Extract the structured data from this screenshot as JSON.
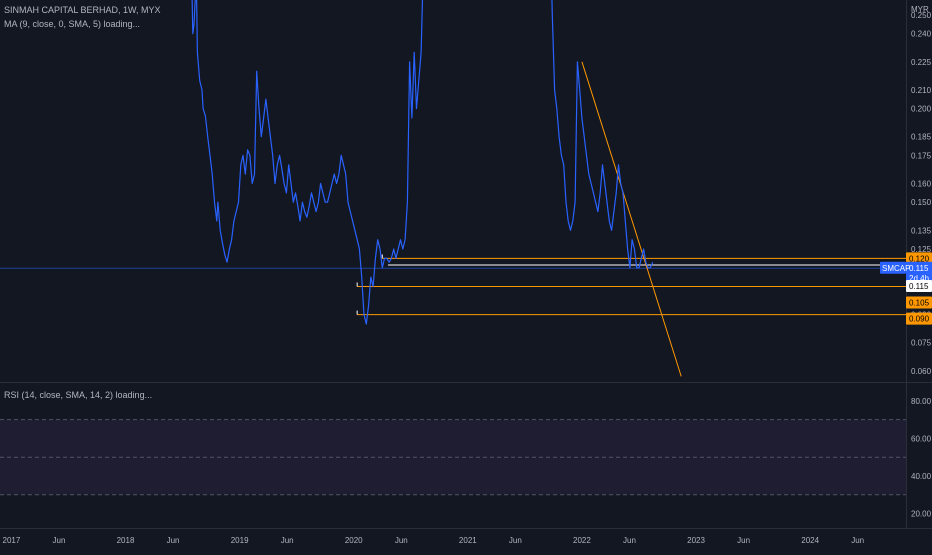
{
  "header": {
    "symbol_line": "SINMAH CAPITAL BERHAD, 1W, MYX",
    "ma_line": "MA (9, close, 0, SMA, 5) loading..."
  },
  "rsi_panel": {
    "legend": "RSI (14, close, SMA, 14, 2) loading...",
    "ticks": [
      "80.00",
      "60.00",
      "40.00",
      "20.00"
    ],
    "band_upper": 70,
    "band_lower": 30,
    "mid": 50
  },
  "price_axis": {
    "currency": "MYR",
    "ticks": [
      "0.250",
      "0.240",
      "0.225",
      "0.210",
      "0.200",
      "0.185",
      "0.175",
      "0.160",
      "0.150",
      "0.135",
      "0.125",
      "0.115",
      "0.105",
      "0.090",
      "0.075",
      "0.060"
    ]
  },
  "tags": {
    "symbol": "SMCAP",
    "last_price": "0.115",
    "countdown": "2d 4h",
    "levels": [
      {
        "label": "0.120",
        "value": 0.12,
        "color": "#ff9800"
      },
      {
        "label": "0.115",
        "value": 0.115,
        "color": "#ffffff"
      },
      {
        "label": "0.105",
        "value": 0.105,
        "color": "#ff9800"
      },
      {
        "label": "0.090",
        "value": 0.09,
        "color": "#ff9800"
      }
    ]
  },
  "time_axis": {
    "labels": [
      "2017",
      "Jun",
      "2018",
      "Jun",
      "2019",
      "Jun",
      "2020",
      "Jun",
      "2021",
      "Jun",
      "2022",
      "Jun",
      "2023",
      "Jun",
      "2024",
      "Jun"
    ]
  },
  "colors": {
    "background": "#131722",
    "price_line": "#2962ff",
    "trend_line": "#ff9800",
    "rsi_band": "#7e57c2"
  },
  "chart_data": {
    "type": "line",
    "title": "SINMAH CAPITAL BERHAD, 1W, MYX",
    "ylabel": "MYR",
    "ylim": [
      0.054,
      0.258
    ],
    "series": [
      {
        "points": [
          [
            2018.57,
            0.3
          ],
          [
            2018.59,
            0.24
          ],
          [
            2018.6,
            0.245
          ],
          [
            2018.62,
            0.27
          ],
          [
            2018.63,
            0.23
          ],
          [
            2018.65,
            0.215
          ],
          [
            2018.67,
            0.21
          ],
          [
            2018.68,
            0.2
          ],
          [
            2018.7,
            0.196
          ],
          [
            2018.72,
            0.185
          ],
          [
            2018.74,
            0.175
          ],
          [
            2018.76,
            0.165
          ],
          [
            2018.78,
            0.15
          ],
          [
            2018.8,
            0.14
          ],
          [
            2018.81,
            0.15
          ],
          [
            2018.83,
            0.135
          ],
          [
            2018.85,
            0.128
          ],
          [
            2018.87,
            0.122
          ],
          [
            2018.89,
            0.118
          ],
          [
            2018.91,
            0.125
          ],
          [
            2018.93,
            0.13
          ],
          [
            2018.95,
            0.14
          ],
          [
            2018.97,
            0.145
          ],
          [
            2018.99,
            0.15
          ],
          [
            2019.01,
            0.17
          ],
          [
            2019.03,
            0.175
          ],
          [
            2019.05,
            0.165
          ],
          [
            2019.07,
            0.178
          ],
          [
            2019.09,
            0.175
          ],
          [
            2019.11,
            0.16
          ],
          [
            2019.13,
            0.165
          ],
          [
            2019.15,
            0.22
          ],
          [
            2019.17,
            0.2
          ],
          [
            2019.19,
            0.185
          ],
          [
            2019.21,
            0.195
          ],
          [
            2019.23,
            0.205
          ],
          [
            2019.25,
            0.195
          ],
          [
            2019.27,
            0.185
          ],
          [
            2019.29,
            0.175
          ],
          [
            2019.31,
            0.16
          ],
          [
            2019.33,
            0.17
          ],
          [
            2019.35,
            0.175
          ],
          [
            2019.37,
            0.168
          ],
          [
            2019.39,
            0.16
          ],
          [
            2019.41,
            0.155
          ],
          [
            2019.43,
            0.17
          ],
          [
            2019.45,
            0.16
          ],
          [
            2019.47,
            0.15
          ],
          [
            2019.49,
            0.155
          ],
          [
            2019.51,
            0.148
          ],
          [
            2019.53,
            0.14
          ],
          [
            2019.55,
            0.15
          ],
          [
            2019.57,
            0.145
          ],
          [
            2019.59,
            0.142
          ],
          [
            2019.61,
            0.148
          ],
          [
            2019.63,
            0.155
          ],
          [
            2019.65,
            0.15
          ],
          [
            2019.67,
            0.145
          ],
          [
            2019.69,
            0.15
          ],
          [
            2019.71,
            0.16
          ],
          [
            2019.73,
            0.155
          ],
          [
            2019.75,
            0.15
          ],
          [
            2019.77,
            0.15
          ],
          [
            2019.79,
            0.155
          ],
          [
            2019.81,
            0.16
          ],
          [
            2019.83,
            0.165
          ],
          [
            2019.85,
            0.16
          ],
          [
            2019.87,
            0.165
          ],
          [
            2019.89,
            0.175
          ],
          [
            2019.91,
            0.17
          ],
          [
            2019.93,
            0.165
          ],
          [
            2019.95,
            0.15
          ],
          [
            2019.97,
            0.145
          ],
          [
            2019.99,
            0.14
          ],
          [
            2020.01,
            0.135
          ],
          [
            2020.03,
            0.13
          ],
          [
            2020.05,
            0.125
          ],
          [
            2020.07,
            0.11
          ],
          [
            2020.09,
            0.09
          ],
          [
            2020.11,
            0.085
          ],
          [
            2020.13,
            0.095
          ],
          [
            2020.15,
            0.11
          ],
          [
            2020.17,
            0.105
          ],
          [
            2020.19,
            0.12
          ],
          [
            2020.21,
            0.13
          ],
          [
            2020.23,
            0.125
          ],
          [
            2020.25,
            0.115
          ],
          [
            2020.27,
            0.12
          ],
          [
            2020.29,
            0.12
          ],
          [
            2020.31,
            0.118
          ],
          [
            2020.33,
            0.12
          ],
          [
            2020.35,
            0.125
          ],
          [
            2020.37,
            0.12
          ],
          [
            2020.39,
            0.125
          ],
          [
            2020.41,
            0.13
          ],
          [
            2020.43,
            0.125
          ],
          [
            2020.45,
            0.13
          ],
          [
            2020.47,
            0.15
          ],
          [
            2020.49,
            0.225
          ],
          [
            2020.51,
            0.195
          ],
          [
            2020.53,
            0.23
          ],
          [
            2020.55,
            0.2
          ],
          [
            2020.57,
            0.215
          ],
          [
            2020.59,
            0.23
          ],
          [
            2020.62,
            0.3
          ],
          [
            2021.72,
            0.3
          ],
          [
            2021.74,
            0.25
          ],
          [
            2021.76,
            0.21
          ],
          [
            2021.78,
            0.2
          ],
          [
            2021.8,
            0.185
          ],
          [
            2021.82,
            0.175
          ],
          [
            2021.84,
            0.17
          ],
          [
            2021.86,
            0.15
          ],
          [
            2021.88,
            0.14
          ],
          [
            2021.9,
            0.135
          ],
          [
            2021.92,
            0.14
          ],
          [
            2021.94,
            0.15
          ],
          [
            2021.96,
            0.225
          ],
          [
            2021.98,
            0.21
          ],
          [
            2022.0,
            0.195
          ],
          [
            2022.02,
            0.185
          ],
          [
            2022.04,
            0.175
          ],
          [
            2022.06,
            0.165
          ],
          [
            2022.08,
            0.16
          ],
          [
            2022.1,
            0.155
          ],
          [
            2022.12,
            0.15
          ],
          [
            2022.14,
            0.145
          ],
          [
            2022.16,
            0.155
          ],
          [
            2022.18,
            0.17
          ],
          [
            2022.2,
            0.16
          ],
          [
            2022.22,
            0.15
          ],
          [
            2022.24,
            0.14
          ],
          [
            2022.26,
            0.135
          ],
          [
            2022.28,
            0.145
          ],
          [
            2022.3,
            0.155
          ],
          [
            2022.32,
            0.17
          ],
          [
            2022.34,
            0.16
          ],
          [
            2022.36,
            0.155
          ],
          [
            2022.38,
            0.14
          ],
          [
            2022.4,
            0.125
          ],
          [
            2022.42,
            0.115
          ],
          [
            2022.44,
            0.13
          ],
          [
            2022.46,
            0.125
          ],
          [
            2022.48,
            0.115
          ],
          [
            2022.5,
            0.115
          ],
          [
            2022.52,
            0.12
          ],
          [
            2022.54,
            0.125
          ],
          [
            2022.56,
            0.118
          ],
          [
            2022.58,
            0.115
          ],
          [
            2022.6,
            0.115
          ],
          [
            2022.62,
            0.118
          ]
        ]
      }
    ],
    "trend_line": {
      "from": [
        2022.0,
        0.225
      ],
      "to": [
        2022.87,
        0.057
      ]
    },
    "support_lines": [
      {
        "from": 2020.25,
        "value": 0.12
      },
      {
        "from": 2020.03,
        "value": 0.105
      },
      {
        "from": 2020.03,
        "value": 0.09
      }
    ],
    "last_price_line": 0.115,
    "x_range": [
      2016.9,
      2024.84
    ],
    "grid": false
  }
}
